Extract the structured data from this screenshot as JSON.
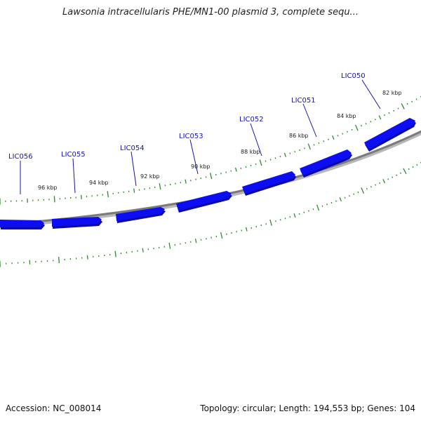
{
  "title": "Lawsonia intracellularis PHE/MN1-00 plasmid 3, complete sequ...",
  "accession_text": "Accession: NC_008014",
  "topology_text": "Topology: circular; Length: 194,553 bp; Genes: 104",
  "colors": {
    "gene_fill": "#0d0df2",
    "gene_shade": "#0a0aa8",
    "backbone": "#808080",
    "tick": "#2e8b2e",
    "label": "#1515a8"
  },
  "genes": [
    {
      "name": "LIC056"
    },
    {
      "name": "LIC055"
    },
    {
      "name": "LIC054"
    },
    {
      "name": "LIC053"
    },
    {
      "name": "LIC052"
    },
    {
      "name": "LIC051"
    },
    {
      "name": "LIC050"
    }
  ],
  "kbp_labels": [
    "96 kbp",
    "94 kbp",
    "92 kbp",
    "90 kbp",
    "88 kbp",
    "86 kbp",
    "84 kbp",
    "82 kbp"
  ]
}
